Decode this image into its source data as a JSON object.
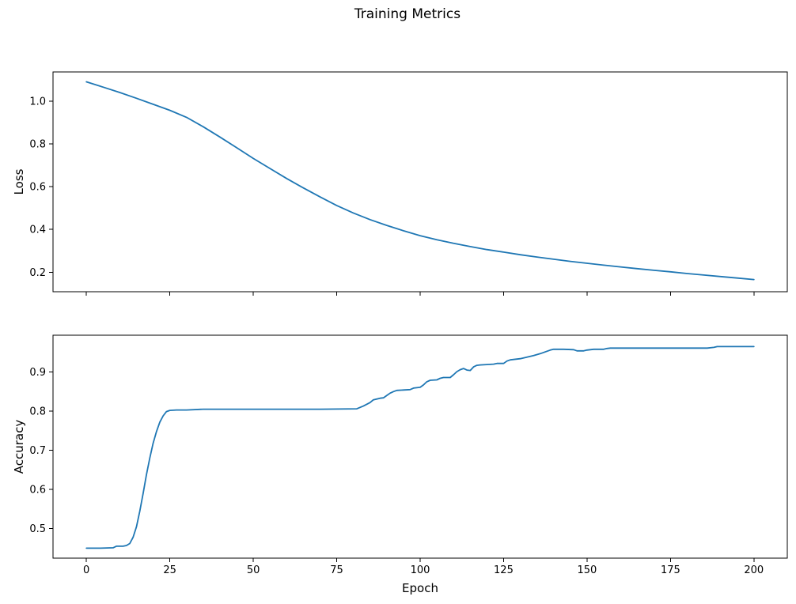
{
  "figure": {
    "title": "Training Metrics",
    "background_color": "#ffffff",
    "line_color": "#1f77b4"
  },
  "chart_data": [
    {
      "type": "line",
      "title": "",
      "xlabel": "",
      "ylabel": "Loss",
      "grid": false,
      "legend": null,
      "xlim": [
        -10,
        210
      ],
      "ylim": [
        0.109,
        1.136
      ],
      "xticks": [
        0,
        25,
        50,
        75,
        100,
        125,
        150,
        175,
        200
      ],
      "xticklabels": [
        "0",
        "25",
        "50",
        "75",
        "100",
        "125",
        "150",
        "175",
        "200"
      ],
      "yticks": [
        0.2,
        0.4,
        0.6,
        0.8,
        1.0
      ],
      "yticklabels": [
        "0.2",
        "0.4",
        "0.6",
        "0.8",
        "1.0"
      ],
      "series": [
        {
          "name": "loss",
          "color": "#1f77b4",
          "x": [
            0,
            5,
            10,
            15,
            20,
            25,
            30,
            35,
            40,
            45,
            50,
            55,
            60,
            65,
            70,
            75,
            80,
            85,
            90,
            95,
            100,
            105,
            110,
            115,
            120,
            125,
            130,
            135,
            140,
            145,
            150,
            155,
            160,
            165,
            170,
            175,
            180,
            185,
            190,
            195,
            200
          ],
          "y": [
            1.09,
            1.065,
            1.04,
            1.013,
            0.985,
            0.957,
            0.924,
            0.88,
            0.832,
            0.782,
            0.732,
            0.685,
            0.638,
            0.594,
            0.552,
            0.512,
            0.477,
            0.446,
            0.419,
            0.394,
            0.371,
            0.352,
            0.335,
            0.32,
            0.306,
            0.294,
            0.282,
            0.271,
            0.261,
            0.251,
            0.242,
            0.233,
            0.225,
            0.217,
            0.209,
            0.202,
            0.194,
            0.187,
            0.18,
            0.173,
            0.166
          ]
        }
      ]
    },
    {
      "type": "line",
      "title": "",
      "xlabel": "Epoch",
      "ylabel": "Accuracy",
      "grid": false,
      "legend": null,
      "xlim": [
        -10,
        210
      ],
      "ylim": [
        0.4246,
        0.994
      ],
      "xticks": [
        0,
        25,
        50,
        75,
        100,
        125,
        150,
        175,
        200
      ],
      "xticklabels": [
        "0",
        "25",
        "50",
        "75",
        "100",
        "125",
        "150",
        "175",
        "200"
      ],
      "yticks": [
        0.5,
        0.6,
        0.7,
        0.8,
        0.9
      ],
      "yticklabels": [
        "0.5",
        "0.6",
        "0.7",
        "0.8",
        "0.9"
      ],
      "series": [
        {
          "name": "accuracy",
          "color": "#1f77b4",
          "x": [
            0,
            4,
            8,
            9,
            11,
            12,
            13,
            14,
            15,
            16,
            17,
            18,
            19,
            20,
            21,
            22,
            23,
            24,
            25,
            27,
            30,
            35,
            40,
            50,
            60,
            70,
            81,
            83,
            85,
            86,
            88,
            89,
            90,
            91,
            92,
            93,
            95,
            97,
            98,
            100,
            101,
            102,
            103,
            105,
            106,
            107,
            109,
            110,
            111,
            112,
            113,
            114,
            115,
            116,
            117,
            118,
            120,
            122,
            123,
            125,
            126,
            127,
            128,
            130,
            132,
            134,
            136,
            138,
            139,
            140,
            143,
            146,
            147,
            149,
            150,
            152,
            155,
            156,
            157,
            160,
            170,
            180,
            186,
            188,
            189,
            190,
            195,
            200
          ],
          "y": [
            0.45,
            0.45,
            0.451,
            0.455,
            0.455,
            0.457,
            0.462,
            0.478,
            0.505,
            0.545,
            0.59,
            0.638,
            0.68,
            0.718,
            0.748,
            0.772,
            0.788,
            0.799,
            0.802,
            0.803,
            0.803,
            0.805,
            0.805,
            0.805,
            0.805,
            0.805,
            0.806,
            0.813,
            0.822,
            0.829,
            0.833,
            0.834,
            0.84,
            0.846,
            0.85,
            0.853,
            0.854,
            0.855,
            0.859,
            0.861,
            0.867,
            0.875,
            0.879,
            0.88,
            0.884,
            0.886,
            0.886,
            0.893,
            0.901,
            0.906,
            0.909,
            0.905,
            0.904,
            0.913,
            0.917,
            0.918,
            0.919,
            0.92,
            0.922,
            0.922,
            0.928,
            0.931,
            0.932,
            0.934,
            0.938,
            0.942,
            0.947,
            0.953,
            0.956,
            0.958,
            0.958,
            0.957,
            0.954,
            0.954,
            0.956,
            0.958,
            0.958,
            0.96,
            0.961,
            0.961,
            0.961,
            0.961,
            0.961,
            0.963,
            0.965,
            0.965,
            0.965,
            0.965
          ]
        }
      ]
    }
  ]
}
